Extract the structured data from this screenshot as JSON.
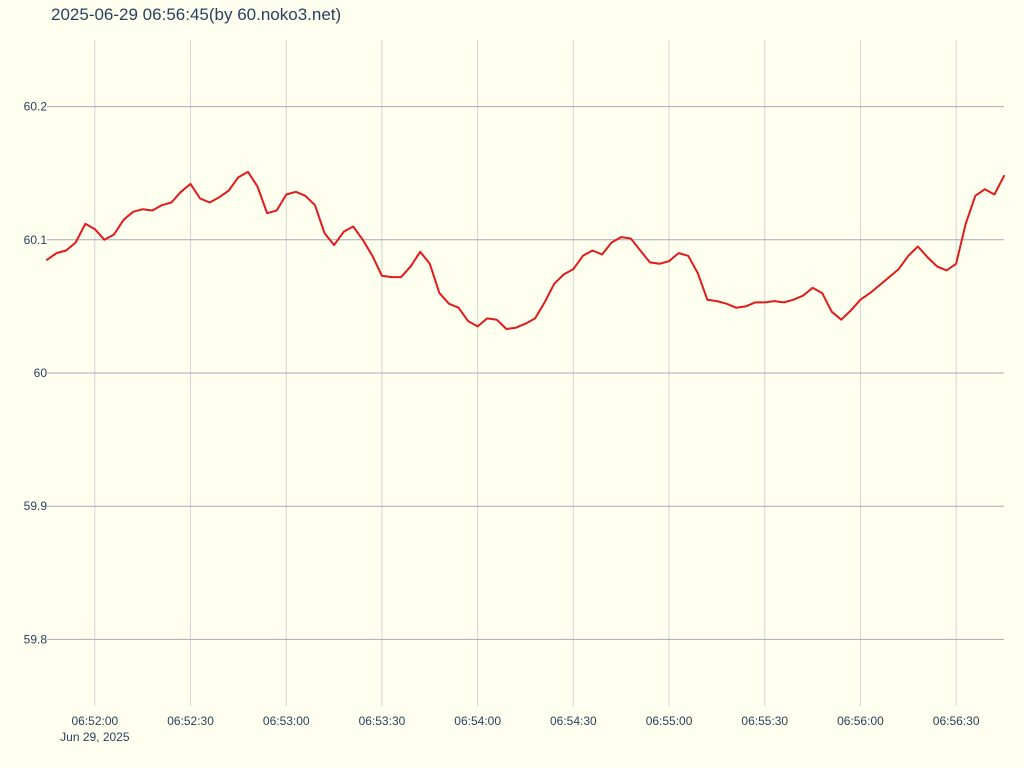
{
  "chart_data": {
    "type": "line",
    "title": "2025-06-29 06:56:45(by 60.noko3.net)",
    "xlabel": "",
    "ylabel": "",
    "x_ticks": [
      "06:52:00",
      "06:52:30",
      "06:53:00",
      "06:53:30",
      "06:54:00",
      "06:54:30",
      "06:55:00",
      "06:55:30",
      "06:56:00",
      "06:56:30"
    ],
    "x_date_label": "Jun 29, 2025",
    "y_ticks": [
      "60.2",
      "60.1",
      "60",
      "59.9",
      "59.8"
    ],
    "ylim": [
      59.75,
      60.25
    ],
    "xlim": [
      "06:51:45",
      "06:56:45"
    ],
    "grid": true,
    "colors": {
      "background": "#fffff0",
      "line": "#e31a1c",
      "grid_x": "#d3d3d3",
      "grid_y": "#a8a8b8",
      "text": "#2a3f5f"
    },
    "series": [
      {
        "x": [
          "06:51:45",
          "06:51:48",
          "06:51:51",
          "06:51:54",
          "06:51:57",
          "06:52:00",
          "06:52:03",
          "06:52:06",
          "06:52:09",
          "06:52:12",
          "06:52:15",
          "06:52:18",
          "06:52:21",
          "06:52:24",
          "06:52:27",
          "06:52:30",
          "06:52:33",
          "06:52:36",
          "06:52:39",
          "06:52:42",
          "06:52:45",
          "06:52:48",
          "06:52:51",
          "06:52:54",
          "06:52:57",
          "06:53:00",
          "06:53:03",
          "06:53:06",
          "06:53:09",
          "06:53:12",
          "06:53:15",
          "06:53:18",
          "06:53:21",
          "06:53:24",
          "06:53:27",
          "06:53:30",
          "06:53:33",
          "06:53:36",
          "06:53:39",
          "06:53:42",
          "06:53:45",
          "06:53:48",
          "06:53:51",
          "06:53:54",
          "06:53:57",
          "06:54:00",
          "06:54:03",
          "06:54:06",
          "06:54:09",
          "06:54:12",
          "06:54:15",
          "06:54:18",
          "06:54:21",
          "06:54:24",
          "06:54:27",
          "06:54:30",
          "06:54:33",
          "06:54:36",
          "06:54:39",
          "06:54:42",
          "06:54:45",
          "06:54:48",
          "06:54:51",
          "06:54:54",
          "06:54:57",
          "06:55:00",
          "06:55:03",
          "06:55:06",
          "06:55:09",
          "06:55:12",
          "06:55:15",
          "06:55:18",
          "06:55:21",
          "06:55:24",
          "06:55:27",
          "06:55:30",
          "06:55:33",
          "06:55:36",
          "06:55:39",
          "06:55:42",
          "06:55:45",
          "06:55:48",
          "06:55:51",
          "06:55:54",
          "06:55:57",
          "06:56:00",
          "06:56:03",
          "06:56:06",
          "06:56:09",
          "06:56:12",
          "06:56:15",
          "06:56:18",
          "06:56:21",
          "06:56:24",
          "06:56:27",
          "06:56:30",
          "06:56:33",
          "06:56:36",
          "06:56:39",
          "06:56:42",
          "06:56:45"
        ],
        "y": [
          60.085,
          60.09,
          60.092,
          60.098,
          60.112,
          60.108,
          60.1,
          60.104,
          60.115,
          60.121,
          60.123,
          60.122,
          60.126,
          60.128,
          60.136,
          60.142,
          60.131,
          60.128,
          60.132,
          60.137,
          60.147,
          60.151,
          60.14,
          60.12,
          60.122,
          60.134,
          60.136,
          60.133,
          60.126,
          60.105,
          60.096,
          60.106,
          60.11,
          60.1,
          60.088,
          60.073,
          60.072,
          60.072,
          60.08,
          60.091,
          60.082,
          60.06,
          60.052,
          60.049,
          60.039,
          60.035,
          60.041,
          60.04,
          60.033,
          60.034,
          60.037,
          60.041,
          60.053,
          60.067,
          60.074,
          60.078,
          60.088,
          60.092,
          60.089,
          60.098,
          60.102,
          60.101,
          60.092,
          60.083,
          60.082,
          60.084,
          60.09,
          60.088,
          60.075,
          60.055,
          60.054,
          60.052,
          60.049,
          60.05,
          60.053,
          60.053,
          60.054,
          60.053,
          60.055,
          60.058,
          60.064,
          60.06,
          60.046,
          60.04,
          60.047,
          60.055,
          60.06,
          60.066,
          60.072,
          60.078,
          60.088,
          60.095,
          60.087,
          60.08,
          60.077,
          60.082,
          60.112,
          60.133,
          60.138,
          60.134,
          60.148
        ]
      }
    ]
  }
}
